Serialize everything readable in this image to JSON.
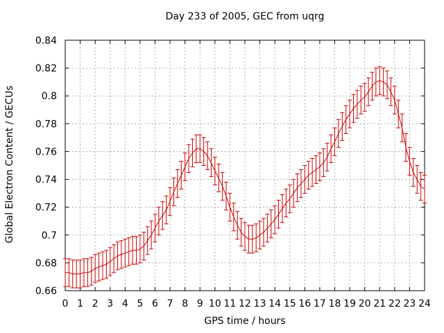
{
  "chart_data": {
    "type": "line",
    "title": "Day 233 of 2005, GEC from uqrg",
    "xlabel": "GPS time / hours",
    "ylabel": "Global Electron Content / GECUs",
    "xlim": [
      0,
      24
    ],
    "ylim": [
      0.66,
      0.84
    ],
    "xticks": [
      0,
      1,
      2,
      3,
      4,
      5,
      6,
      7,
      8,
      9,
      10,
      11,
      12,
      13,
      14,
      15,
      16,
      17,
      18,
      19,
      20,
      21,
      22,
      23,
      24
    ],
    "yticks": [
      0.66,
      0.68,
      0.7,
      0.72,
      0.74,
      0.76,
      0.78,
      0.8,
      0.82,
      0.84
    ],
    "ytick_labels": [
      "0.66",
      "0.68",
      "0.7",
      "0.72",
      "0.74",
      "0.76",
      "0.78",
      "0.8",
      "0.82",
      "0.84"
    ],
    "grid": true,
    "error_bar_halfwidth": 0.01,
    "color": "#cc0000",
    "series": [
      {
        "x": [
          0.0,
          0.25,
          0.5,
          0.75,
          1.0,
          1.25,
          1.5,
          1.75,
          2.0,
          2.25,
          2.5,
          2.75,
          3.0,
          3.25,
          3.5,
          3.75,
          4.0,
          4.25,
          4.5,
          4.75,
          5.0,
          5.25,
          5.5,
          5.75,
          6.0,
          6.25,
          6.5,
          6.75,
          7.0,
          7.25,
          7.5,
          7.75,
          8.0,
          8.25,
          8.5,
          8.75,
          9.0,
          9.25,
          9.5,
          9.75,
          10.0,
          10.25,
          10.5,
          10.75,
          11.0,
          11.25,
          11.5,
          11.75,
          12.0,
          12.25,
          12.5,
          12.75,
          13.0,
          13.25,
          13.5,
          13.75,
          14.0,
          14.25,
          14.5,
          14.75,
          15.0,
          15.25,
          15.5,
          15.75,
          16.0,
          16.25,
          16.5,
          16.75,
          17.0,
          17.25,
          17.5,
          17.75,
          18.0,
          18.25,
          18.5,
          18.75,
          19.0,
          19.25,
          19.5,
          19.75,
          20.0,
          20.25,
          20.5,
          20.75,
          21.0,
          21.25,
          21.5,
          21.75,
          22.0,
          22.25,
          22.5,
          22.75,
          23.0,
          23.25,
          23.5,
          23.75,
          24.0
        ],
        "values": [
          0.673,
          0.673,
          0.672,
          0.672,
          0.672,
          0.673,
          0.673,
          0.674,
          0.676,
          0.677,
          0.678,
          0.679,
          0.681,
          0.683,
          0.685,
          0.686,
          0.687,
          0.688,
          0.689,
          0.689,
          0.69,
          0.692,
          0.696,
          0.7,
          0.705,
          0.71,
          0.714,
          0.718,
          0.724,
          0.731,
          0.737,
          0.743,
          0.749,
          0.755,
          0.759,
          0.762,
          0.762,
          0.76,
          0.757,
          0.752,
          0.746,
          0.741,
          0.735,
          0.728,
          0.72,
          0.713,
          0.707,
          0.702,
          0.699,
          0.697,
          0.697,
          0.698,
          0.7,
          0.702,
          0.705,
          0.708,
          0.711,
          0.715,
          0.719,
          0.723,
          0.726,
          0.73,
          0.734,
          0.737,
          0.74,
          0.743,
          0.745,
          0.747,
          0.749,
          0.752,
          0.756,
          0.762,
          0.767,
          0.773,
          0.778,
          0.783,
          0.787,
          0.791,
          0.794,
          0.797,
          0.799,
          0.803,
          0.807,
          0.81,
          0.811,
          0.81,
          0.808,
          0.803,
          0.797,
          0.787,
          0.777,
          0.763,
          0.753,
          0.745,
          0.74,
          0.735,
          0.733
        ]
      }
    ]
  }
}
